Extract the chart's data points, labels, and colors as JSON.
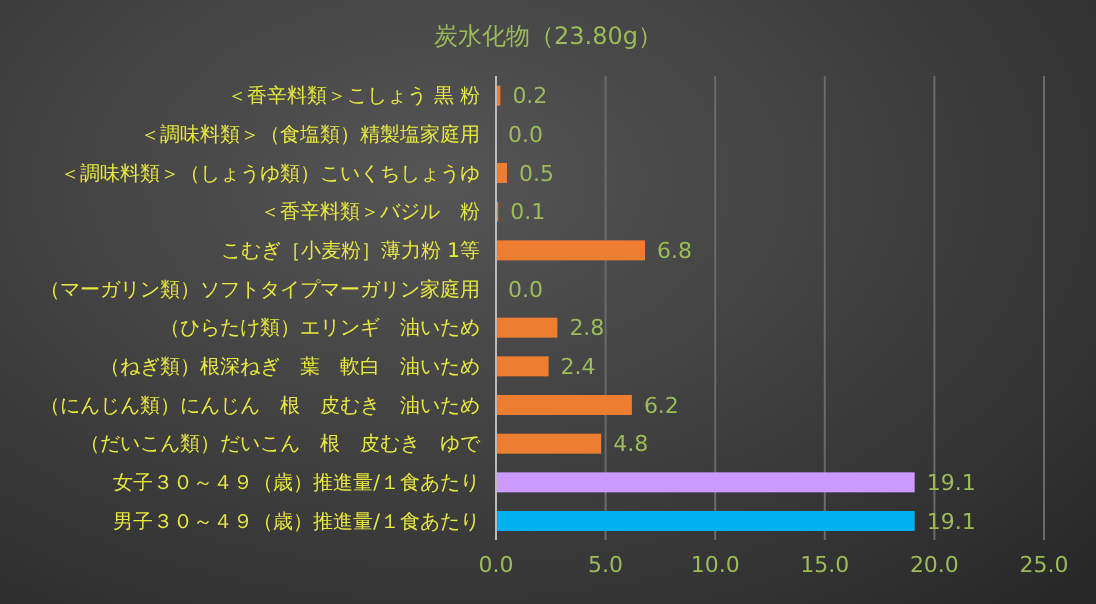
{
  "chart_data": {
    "type": "bar",
    "orientation": "horizontal",
    "title": "炭水化物（23.80g）",
    "categories": [
      "＜香辛料類＞こしょう 黒 粉",
      "＜調味料類＞（食塩類）精製塩家庭用",
      "＜調味料類＞（しょうゆ類）こいくちしょうゆ",
      "＜香辛料類＞バジル　粉",
      "こむぎ［小麦粉］薄力粉 1等",
      "（マーガリン類）ソフトタイプマーガリン家庭用",
      "（ひらたけ類）エリンギ　油いため",
      "（ねぎ類）根深ねぎ　葉　軟白　油いため",
      "（にんじん類）にんじん　根　皮むき　油いため",
      "（だいこん類）だいこん　根　皮むき　ゆで",
      "女子３０～４９（歳）推進量/１食あたり",
      "男子３０～４９（歳）推進量/１食あたり"
    ],
    "values": [
      0.2,
      0,
      0.5,
      0.1,
      6.8,
      0,
      2.8,
      2.4,
      6.2,
      4.8,
      19.1,
      19.1
    ],
    "value_labels": [
      "0.2",
      "0.0",
      "0.5",
      "0.1",
      "6.8",
      "0.0",
      "2.8",
      "2.4",
      "6.2",
      "4.8",
      "19.1",
      "19.1"
    ],
    "colors": [
      "#ed7d31",
      "#ed7d31",
      "#ed7d31",
      "#ed7d31",
      "#ed7d31",
      "#ed7d31",
      "#ed7d31",
      "#ed7d31",
      "#ed7d31",
      "#ed7d31",
      "#cc99ff",
      "#00b0f0"
    ],
    "xlim": [
      0,
      25
    ],
    "xticks": [
      {
        "value": 0,
        "label": "0.0"
      },
      {
        "value": 5,
        "label": "5.0"
      },
      {
        "value": 10,
        "label": "10.0"
      },
      {
        "value": 15,
        "label": "15.0"
      },
      {
        "value": 20,
        "label": "20.0"
      },
      {
        "value": 25,
        "label": "25.0"
      }
    ],
    "grid": "x"
  }
}
